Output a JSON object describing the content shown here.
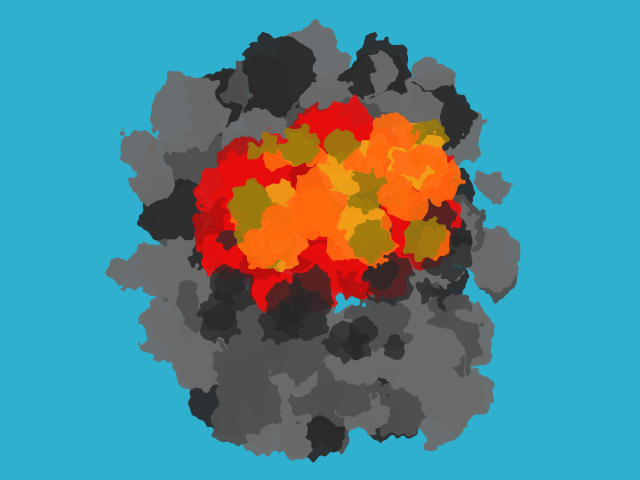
{
  "scene": {
    "kind": "particle-explosion",
    "background_color": "#2fb0cf",
    "palette": {
      "smoke_light": "#6b6b6b",
      "smoke_mid": "#505050",
      "smoke_dark": "#2a2a2a",
      "fire_red": "#e8120c",
      "fire_deep": "#b80c08",
      "fire_orange": "#ff6a12",
      "fire_amber": "#f0a21a",
      "fire_olive": "#9a7a10"
    }
  }
}
